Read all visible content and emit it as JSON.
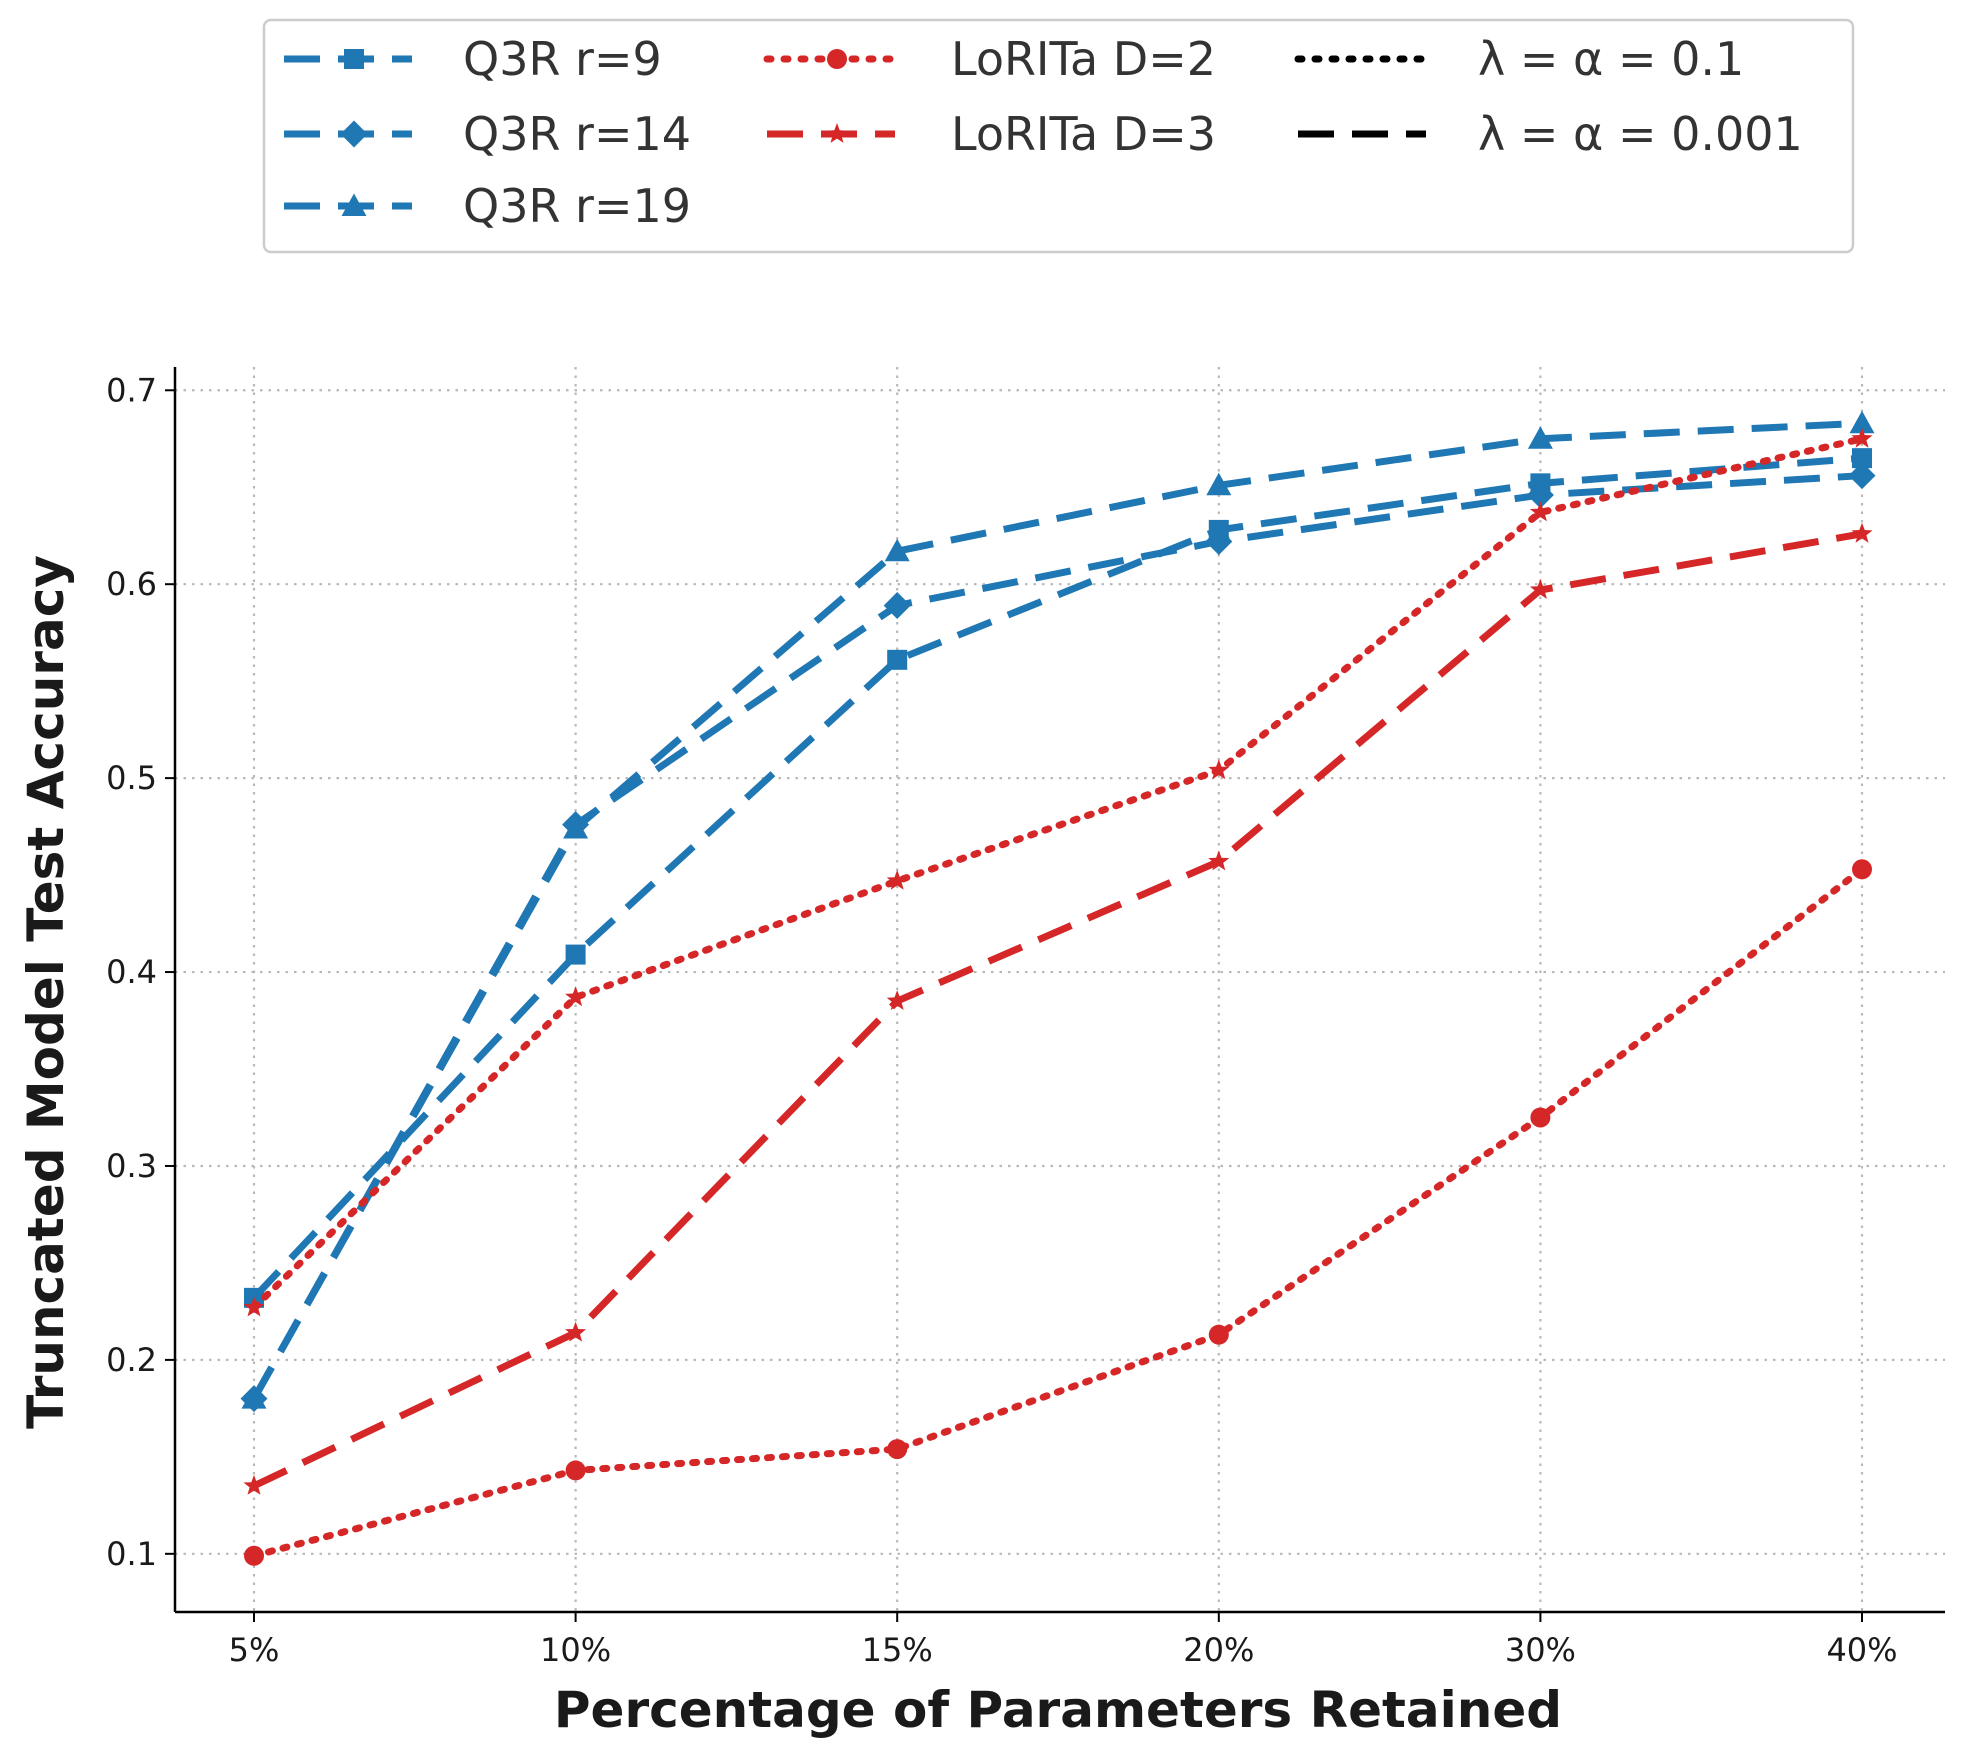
{
  "chart_data": {
    "type": "line",
    "xlabel": "Percentage of Parameters Retained",
    "ylabel": "Truncated Model Test Accuracy",
    "categories": [
      "5%",
      "10%",
      "15%",
      "20%",
      "30%",
      "40%"
    ],
    "ylim": [
      0.07,
      0.712
    ],
    "yticks": [
      0.1,
      0.2,
      0.3,
      0.4,
      0.5,
      0.6,
      0.7
    ],
    "ytick_labels": [
      "0.1",
      "0.2",
      "0.3",
      "0.4",
      "0.5",
      "0.6",
      "0.7"
    ],
    "grid": true,
    "legend_position": "top-center, above plot",
    "series": [
      {
        "name": "Q3R r=9",
        "color": "#1f77b4",
        "marker": "square",
        "linestyle": "dashed",
        "values": [
          0.232,
          0.409,
          0.561,
          0.628,
          0.652,
          0.665
        ]
      },
      {
        "name": "Q3R r=14",
        "color": "#1f77b4",
        "marker": "diamond",
        "linestyle": "dashed",
        "values": [
          0.18,
          0.476,
          0.589,
          0.622,
          0.646,
          0.656
        ]
      },
      {
        "name": "Q3R r=19",
        "color": "#1f77b4",
        "marker": "triangle",
        "linestyle": "dashed",
        "values": [
          0.18,
          0.474,
          0.617,
          0.651,
          0.675,
          0.683
        ]
      },
      {
        "name": "LoRITa D=2",
        "color": "#d62728",
        "marker": "circle",
        "linestyle": "dotted",
        "values": [
          0.099,
          0.143,
          0.154,
          0.213,
          0.325,
          0.453
        ]
      },
      {
        "name": "LoRITa D=2 (λ = α = 0.1)",
        "color": "#d62728",
        "marker": "star",
        "linestyle": "dotted",
        "values": [
          0.227,
          0.387,
          0.447,
          0.504,
          0.637,
          0.675
        ]
      },
      {
        "name": "LoRITa D=3",
        "color": "#d62728",
        "marker": "star",
        "linestyle": "dashed",
        "values": [
          0.135,
          0.214,
          0.385,
          0.457,
          0.597,
          0.626
        ]
      }
    ],
    "legend": {
      "entries": [
        {
          "label": "Q3R r=9",
          "color": "#1f77b4",
          "marker": "square",
          "linestyle": "dashed"
        },
        {
          "label": "Q3R r=14",
          "color": "#1f77b4",
          "marker": "diamond",
          "linestyle": "dashed"
        },
        {
          "label": "Q3R r=19",
          "color": "#1f77b4",
          "marker": "triangle",
          "linestyle": "dashed"
        },
        {
          "label": "LoRITa D=2",
          "color": "#d62728",
          "marker": "circle",
          "linestyle": "dotted"
        },
        {
          "label": "LoRITa D=3",
          "color": "#d62728",
          "marker": "star",
          "linestyle": "dashed"
        },
        {
          "label": "λ = α = 0.1",
          "color": "#000000",
          "marker": "none",
          "linestyle": "dotted"
        },
        {
          "label": "λ = α = 0.001",
          "color": "#000000",
          "marker": "none",
          "linestyle": "dashed"
        }
      ]
    }
  }
}
